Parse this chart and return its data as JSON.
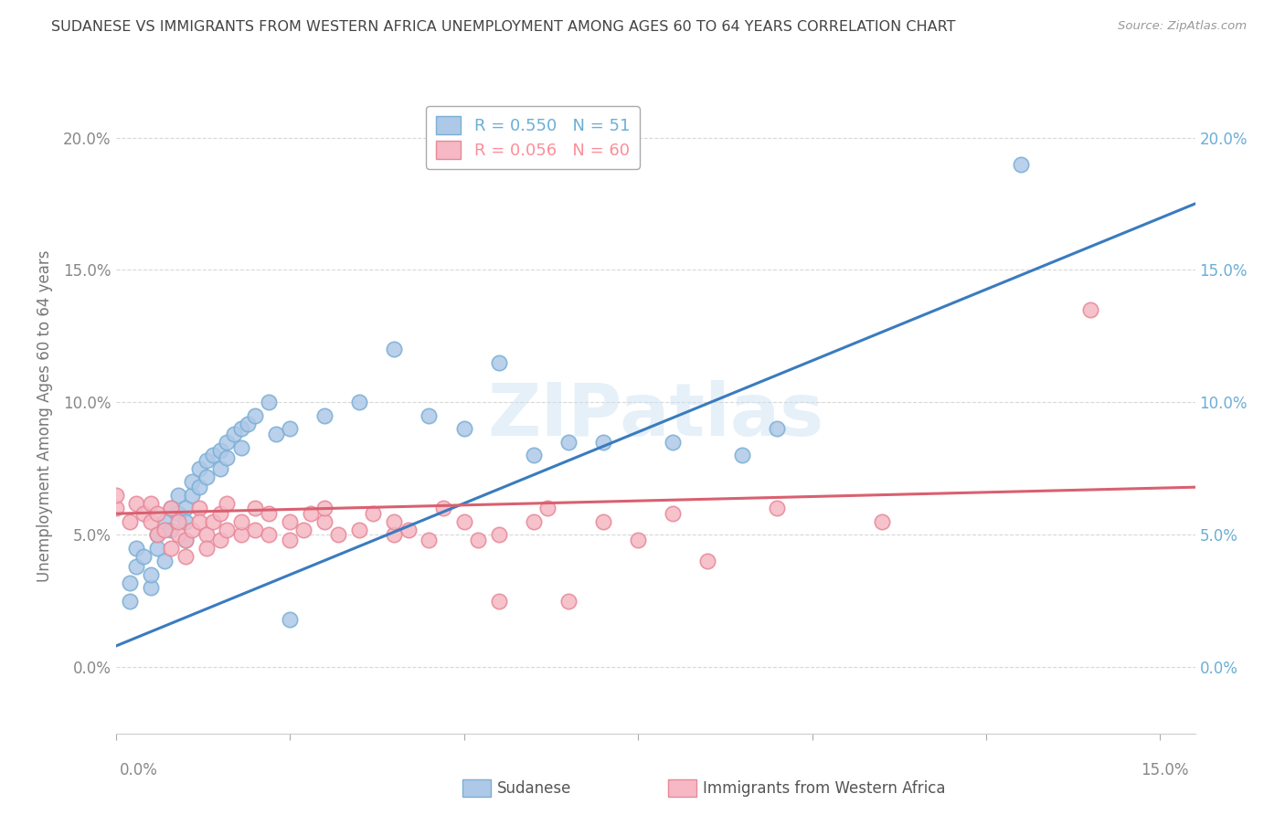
{
  "title": "SUDANESE VS IMMIGRANTS FROM WESTERN AFRICA UNEMPLOYMENT AMONG AGES 60 TO 64 YEARS CORRELATION CHART",
  "source": "Source: ZipAtlas.com",
  "ylabel": "Unemployment Among Ages 60 to 64 years",
  "xlim": [
    0.0,
    0.155
  ],
  "ylim": [
    -0.025,
    0.215
  ],
  "yticks": [
    0.0,
    0.05,
    0.1,
    0.15,
    0.2
  ],
  "ytick_labels": [
    "0.0%",
    "5.0%",
    "10.0%",
    "15.0%",
    "20.0%"
  ],
  "xtick_labels_ends": [
    "0.0%",
    "15.0%"
  ],
  "legend_entries": [
    {
      "label": "R = 0.550   N = 51",
      "color": "#6baed6"
    },
    {
      "label": "R = 0.056   N = 60",
      "color": "#fb8e9a"
    }
  ],
  "sudanese_color_fill": "#aec8e8",
  "sudanese_color_edge": "#7aafd4",
  "western_color_fill": "#f5b8c4",
  "western_color_edge": "#e88898",
  "sudanese_line_color": "#3a7bbf",
  "western_africa_line_color": "#d96070",
  "watermark_text": "ZIPatlas",
  "sudanese_scatter": [
    [
      0.002,
      0.025
    ],
    [
      0.002,
      0.032
    ],
    [
      0.003,
      0.038
    ],
    [
      0.003,
      0.045
    ],
    [
      0.004,
      0.042
    ],
    [
      0.005,
      0.03
    ],
    [
      0.005,
      0.035
    ],
    [
      0.006,
      0.05
    ],
    [
      0.006,
      0.045
    ],
    [
      0.007,
      0.04
    ],
    [
      0.007,
      0.055
    ],
    [
      0.008,
      0.06
    ],
    [
      0.008,
      0.052
    ],
    [
      0.009,
      0.065
    ],
    [
      0.009,
      0.058
    ],
    [
      0.01,
      0.06
    ],
    [
      0.01,
      0.055
    ],
    [
      0.01,
      0.048
    ],
    [
      0.011,
      0.065
    ],
    [
      0.011,
      0.07
    ],
    [
      0.012,
      0.075
    ],
    [
      0.012,
      0.068
    ],
    [
      0.013,
      0.072
    ],
    [
      0.013,
      0.078
    ],
    [
      0.014,
      0.08
    ],
    [
      0.015,
      0.082
    ],
    [
      0.015,
      0.075
    ],
    [
      0.016,
      0.085
    ],
    [
      0.016,
      0.079
    ],
    [
      0.017,
      0.088
    ],
    [
      0.018,
      0.09
    ],
    [
      0.018,
      0.083
    ],
    [
      0.019,
      0.092
    ],
    [
      0.02,
      0.095
    ],
    [
      0.022,
      0.1
    ],
    [
      0.023,
      0.088
    ],
    [
      0.025,
      0.09
    ],
    [
      0.025,
      0.018
    ],
    [
      0.03,
      0.095
    ],
    [
      0.035,
      0.1
    ],
    [
      0.04,
      0.12
    ],
    [
      0.045,
      0.095
    ],
    [
      0.05,
      0.09
    ],
    [
      0.055,
      0.115
    ],
    [
      0.06,
      0.08
    ],
    [
      0.065,
      0.085
    ],
    [
      0.07,
      0.085
    ],
    [
      0.08,
      0.085
    ],
    [
      0.09,
      0.08
    ],
    [
      0.095,
      0.09
    ],
    [
      0.13,
      0.19
    ]
  ],
  "western_africa_scatter": [
    [
      0.0,
      0.06
    ],
    [
      0.0,
      0.065
    ],
    [
      0.002,
      0.055
    ],
    [
      0.003,
      0.062
    ],
    [
      0.004,
      0.058
    ],
    [
      0.005,
      0.055
    ],
    [
      0.005,
      0.062
    ],
    [
      0.006,
      0.05
    ],
    [
      0.006,
      0.058
    ],
    [
      0.007,
      0.052
    ],
    [
      0.008,
      0.06
    ],
    [
      0.008,
      0.045
    ],
    [
      0.009,
      0.05
    ],
    [
      0.009,
      0.055
    ],
    [
      0.01,
      0.048
    ],
    [
      0.01,
      0.042
    ],
    [
      0.011,
      0.052
    ],
    [
      0.012,
      0.06
    ],
    [
      0.012,
      0.055
    ],
    [
      0.013,
      0.05
    ],
    [
      0.013,
      0.045
    ],
    [
      0.014,
      0.055
    ],
    [
      0.015,
      0.048
    ],
    [
      0.015,
      0.058
    ],
    [
      0.016,
      0.052
    ],
    [
      0.016,
      0.062
    ],
    [
      0.018,
      0.05
    ],
    [
      0.018,
      0.055
    ],
    [
      0.02,
      0.06
    ],
    [
      0.02,
      0.052
    ],
    [
      0.022,
      0.05
    ],
    [
      0.022,
      0.058
    ],
    [
      0.025,
      0.055
    ],
    [
      0.025,
      0.048
    ],
    [
      0.027,
      0.052
    ],
    [
      0.028,
      0.058
    ],
    [
      0.03,
      0.055
    ],
    [
      0.03,
      0.06
    ],
    [
      0.032,
      0.05
    ],
    [
      0.035,
      0.052
    ],
    [
      0.037,
      0.058
    ],
    [
      0.04,
      0.05
    ],
    [
      0.04,
      0.055
    ],
    [
      0.042,
      0.052
    ],
    [
      0.045,
      0.048
    ],
    [
      0.047,
      0.06
    ],
    [
      0.05,
      0.055
    ],
    [
      0.052,
      0.048
    ],
    [
      0.055,
      0.05
    ],
    [
      0.055,
      0.025
    ],
    [
      0.06,
      0.055
    ],
    [
      0.062,
      0.06
    ],
    [
      0.065,
      0.025
    ],
    [
      0.07,
      0.055
    ],
    [
      0.075,
      0.048
    ],
    [
      0.08,
      0.058
    ],
    [
      0.085,
      0.04
    ],
    [
      0.095,
      0.06
    ],
    [
      0.11,
      0.055
    ],
    [
      0.14,
      0.135
    ]
  ],
  "sudanese_line": {
    "x0": 0.0,
    "x1": 0.155,
    "y0": 0.008,
    "y1": 0.175
  },
  "western_africa_line": {
    "x0": 0.0,
    "x1": 0.155,
    "y0": 0.058,
    "y1": 0.068
  },
  "bottom_legend": [
    {
      "label": "Sudanese",
      "color_fill": "#aec8e8",
      "color_edge": "#7aafd4"
    },
    {
      "label": "Immigrants from Western Africa",
      "color_fill": "#f5b8c4",
      "color_edge": "#e88898"
    }
  ]
}
